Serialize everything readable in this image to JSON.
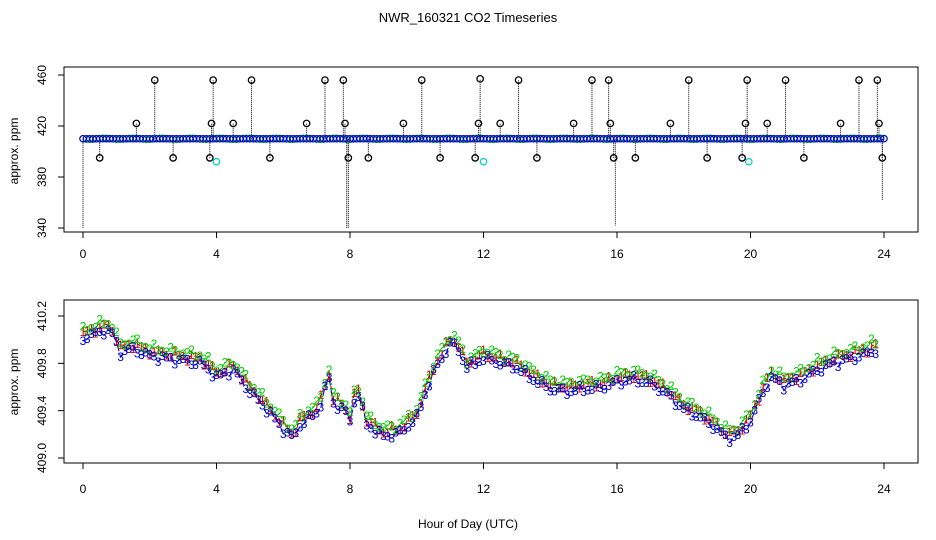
{
  "chart_data": [
    {
      "type": "scatter",
      "title": "NWR_160321  CO2 Timeseries",
      "xlabel": "",
      "ylabel": "approx. ppm",
      "xlim": [
        0,
        24
      ],
      "ylim": [
        340,
        460
      ],
      "xticks": [
        0,
        4,
        8,
        12,
        16,
        20,
        24
      ],
      "yticks": [
        340,
        380,
        420,
        460
      ],
      "baseline": 410,
      "drop_spikes": [
        {
          "x": 0.0,
          "y": 340
        },
        {
          "x": 7.9,
          "y": 340
        },
        {
          "x": 7.95,
          "y": 340
        },
        {
          "x": 15.95,
          "y": 342
        },
        {
          "x": 23.95,
          "y": 362
        }
      ],
      "high_outliers": [
        {
          "x": 1.6,
          "y": 422
        },
        {
          "x": 2.15,
          "y": 456
        },
        {
          "x": 3.9,
          "y": 456
        },
        {
          "x": 3.85,
          "y": 422
        },
        {
          "x": 4.5,
          "y": 422
        },
        {
          "x": 5.05,
          "y": 456
        },
        {
          "x": 6.7,
          "y": 422
        },
        {
          "x": 7.25,
          "y": 456
        },
        {
          "x": 7.8,
          "y": 456
        },
        {
          "x": 7.85,
          "y": 422
        },
        {
          "x": 9.6,
          "y": 422
        },
        {
          "x": 10.15,
          "y": 456
        },
        {
          "x": 11.85,
          "y": 422
        },
        {
          "x": 11.9,
          "y": 457
        },
        {
          "x": 12.5,
          "y": 422
        },
        {
          "x": 13.05,
          "y": 456
        },
        {
          "x": 14.7,
          "y": 422
        },
        {
          "x": 15.25,
          "y": 456
        },
        {
          "x": 15.75,
          "y": 456
        },
        {
          "x": 15.8,
          "y": 422
        },
        {
          "x": 17.6,
          "y": 422
        },
        {
          "x": 18.15,
          "y": 456
        },
        {
          "x": 19.85,
          "y": 422
        },
        {
          "x": 19.9,
          "y": 456
        },
        {
          "x": 20.5,
          "y": 422
        },
        {
          "x": 21.05,
          "y": 456
        },
        {
          "x": 22.7,
          "y": 422
        },
        {
          "x": 23.25,
          "y": 456
        },
        {
          "x": 23.8,
          "y": 456
        },
        {
          "x": 23.85,
          "y": 422
        }
      ],
      "low_outliers": [
        {
          "x": 0.5,
          "y": 395
        },
        {
          "x": 2.7,
          "y": 395
        },
        {
          "x": 3.8,
          "y": 395
        },
        {
          "x": 5.6,
          "y": 395
        },
        {
          "x": 7.95,
          "y": 395
        },
        {
          "x": 8.55,
          "y": 395
        },
        {
          "x": 10.7,
          "y": 395
        },
        {
          "x": 11.75,
          "y": 395
        },
        {
          "x": 13.6,
          "y": 395
        },
        {
          "x": 15.9,
          "y": 395
        },
        {
          "x": 16.55,
          "y": 395
        },
        {
          "x": 18.7,
          "y": 395
        },
        {
          "x": 19.75,
          "y": 395
        },
        {
          "x": 21.6,
          "y": 395
        },
        {
          "x": 23.95,
          "y": 395
        }
      ],
      "cyan_points": [
        {
          "x": 4.0,
          "y": 392
        },
        {
          "x": 12.0,
          "y": 392
        },
        {
          "x": 19.95,
          "y": 392
        }
      ]
    },
    {
      "type": "line",
      "title": "",
      "xlabel": "Hour of Day (UTC)",
      "ylabel": "approx. ppm",
      "xlim": [
        0,
        24
      ],
      "ylim": [
        409.0,
        410.2
      ],
      "xticks": [
        0,
        4,
        8,
        12,
        16,
        20,
        24
      ],
      "yticks": [
        409.0,
        409.4,
        409.8,
        410.2
      ],
      "ytick_labels": [
        "409.0",
        "409.4",
        "409.8",
        "410.2"
      ],
      "series_symbols": [
        "1",
        "2",
        "3"
      ],
      "series_colors": [
        "#dd0000",
        "#00cc00",
        "#0000cc"
      ],
      "base_curve": [
        {
          "x": 0.0,
          "y": 410.05
        },
        {
          "x": 0.3,
          "y": 410.08
        },
        {
          "x": 0.7,
          "y": 410.12
        },
        {
          "x": 0.9,
          "y": 410.08
        },
        {
          "x": 1.1,
          "y": 409.93
        },
        {
          "x": 1.5,
          "y": 409.96
        },
        {
          "x": 2.0,
          "y": 409.9
        },
        {
          "x": 2.5,
          "y": 409.88
        },
        {
          "x": 3.0,
          "y": 409.86
        },
        {
          "x": 3.5,
          "y": 409.84
        },
        {
          "x": 3.8,
          "y": 409.78
        },
        {
          "x": 4.0,
          "y": 409.72
        },
        {
          "x": 4.5,
          "y": 409.78
        },
        {
          "x": 5.0,
          "y": 409.6
        },
        {
          "x": 5.5,
          "y": 409.45
        },
        {
          "x": 6.0,
          "y": 409.28
        },
        {
          "x": 6.3,
          "y": 409.2
        },
        {
          "x": 6.5,
          "y": 409.32
        },
        {
          "x": 7.0,
          "y": 409.42
        },
        {
          "x": 7.2,
          "y": 409.55
        },
        {
          "x": 7.35,
          "y": 409.75
        },
        {
          "x": 7.5,
          "y": 409.5
        },
        {
          "x": 7.8,
          "y": 409.45
        },
        {
          "x": 8.0,
          "y": 409.35
        },
        {
          "x": 8.2,
          "y": 409.62
        },
        {
          "x": 8.5,
          "y": 409.32
        },
        {
          "x": 9.0,
          "y": 409.22
        },
        {
          "x": 9.5,
          "y": 409.25
        },
        {
          "x": 10.0,
          "y": 409.38
        },
        {
          "x": 10.3,
          "y": 409.62
        },
        {
          "x": 10.6,
          "y": 409.82
        },
        {
          "x": 11.0,
          "y": 410.0
        },
        {
          "x": 11.2,
          "y": 409.98
        },
        {
          "x": 11.5,
          "y": 409.8
        },
        {
          "x": 12.0,
          "y": 409.88
        },
        {
          "x": 12.5,
          "y": 409.84
        },
        {
          "x": 13.0,
          "y": 409.8
        },
        {
          "x": 13.5,
          "y": 409.7
        },
        {
          "x": 14.0,
          "y": 409.62
        },
        {
          "x": 14.5,
          "y": 409.6
        },
        {
          "x": 15.0,
          "y": 409.62
        },
        {
          "x": 15.5,
          "y": 409.63
        },
        {
          "x": 16.0,
          "y": 409.68
        },
        {
          "x": 16.5,
          "y": 409.7
        },
        {
          "x": 17.0,
          "y": 409.67
        },
        {
          "x": 17.5,
          "y": 409.58
        },
        {
          "x": 18.0,
          "y": 409.45
        },
        {
          "x": 18.5,
          "y": 409.38
        },
        {
          "x": 19.0,
          "y": 409.28
        },
        {
          "x": 19.3,
          "y": 409.2
        },
        {
          "x": 19.6,
          "y": 409.22
        },
        {
          "x": 20.0,
          "y": 409.35
        },
        {
          "x": 20.3,
          "y": 409.55
        },
        {
          "x": 20.6,
          "y": 409.72
        },
        {
          "x": 21.0,
          "y": 409.65
        },
        {
          "x": 21.5,
          "y": 409.7
        },
        {
          "x": 22.0,
          "y": 409.78
        },
        {
          "x": 22.5,
          "y": 409.84
        },
        {
          "x": 23.0,
          "y": 409.88
        },
        {
          "x": 23.5,
          "y": 409.92
        },
        {
          "x": 23.75,
          "y": 409.95
        }
      ],
      "series_offsets": [
        0.0,
        0.03,
        -0.04
      ]
    }
  ]
}
